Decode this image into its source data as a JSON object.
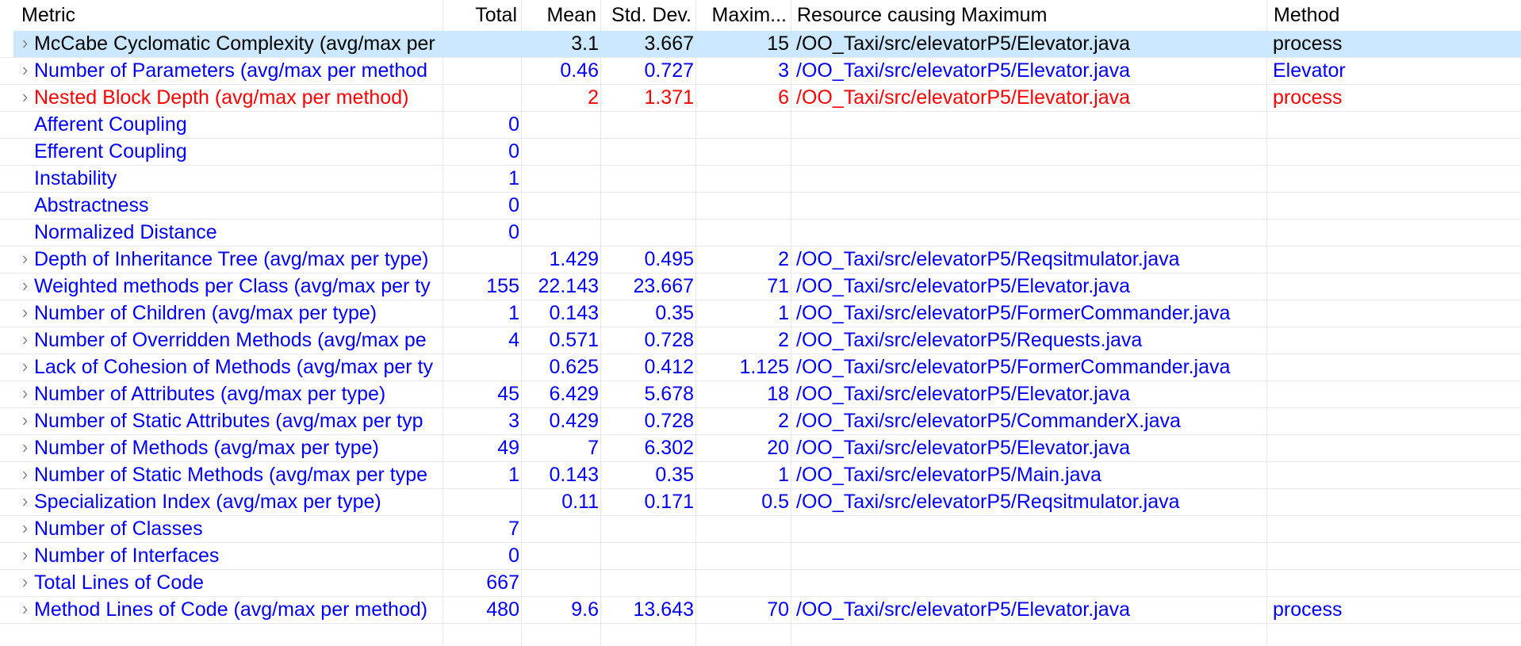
{
  "header": {
    "metric": "Metric",
    "total": "Total",
    "mean": "Mean",
    "std_dev": "Std. Dev.",
    "maximum": "Maxim...",
    "resource": "Resource causing Maximum",
    "method": "Method"
  },
  "colors": {
    "header_text": "#000000",
    "selected_background": "#cce8ff",
    "grid_line": "#e8e8e8",
    "expand_icon": "#808080"
  },
  "rows": [
    {
      "metric": "McCabe Cyclomatic Complexity (avg/max per",
      "mean": "3.1",
      "std_dev": "3.667",
      "maximum": "15",
      "resource": "/OO_Taxi/src/elevatorP5/Elevator.java",
      "method": "process",
      "color": "#000000",
      "selected": true,
      "expand_icon": "chevron-right-icon"
    },
    {
      "metric": "Number of Parameters (avg/max per method",
      "mean": "0.46",
      "std_dev": "0.727",
      "maximum": "3",
      "resource": "/OO_Taxi/src/elevatorP5/Elevator.java",
      "method": "Elevator",
      "color": "#0000ff",
      "expand_icon": "chevron-right-icon"
    },
    {
      "metric": "Nested Block Depth (avg/max per method)",
      "mean": "2",
      "std_dev": "1.371",
      "maximum": "6",
      "resource": "/OO_Taxi/src/elevatorP5/Elevator.java",
      "method": "process",
      "color": "#ff0000",
      "expand_icon": "chevron-right-icon"
    },
    {
      "metric": "Afferent Coupling",
      "total": "0",
      "color": "#0000ff"
    },
    {
      "metric": "Efferent Coupling",
      "total": "0",
      "color": "#0000ff"
    },
    {
      "metric": "Instability",
      "total": "1",
      "color": "#0000ff"
    },
    {
      "metric": "Abstractness",
      "total": "0",
      "color": "#0000ff"
    },
    {
      "metric": "Normalized Distance",
      "total": "0",
      "color": "#0000ff"
    },
    {
      "metric": "Depth of Inheritance Tree (avg/max per type)",
      "mean": "1.429",
      "std_dev": "0.495",
      "maximum": "2",
      "resource": "/OO_Taxi/src/elevatorP5/Reqsitmulator.java",
      "color": "#0000ff",
      "expand_icon": "chevron-right-icon"
    },
    {
      "metric": "Weighted methods per Class (avg/max per ty",
      "total": "155",
      "mean": "22.143",
      "std_dev": "23.667",
      "maximum": "71",
      "resource": "/OO_Taxi/src/elevatorP5/Elevator.java",
      "color": "#0000ff",
      "expand_icon": "chevron-right-icon"
    },
    {
      "metric": "Number of Children (avg/max per type)",
      "total": "1",
      "mean": "0.143",
      "std_dev": "0.35",
      "maximum": "1",
      "resource": "/OO_Taxi/src/elevatorP5/FormerCommander.java",
      "color": "#0000ff",
      "expand_icon": "chevron-right-icon"
    },
    {
      "metric": "Number of Overridden Methods (avg/max pe",
      "total": "4",
      "mean": "0.571",
      "std_dev": "0.728",
      "maximum": "2",
      "resource": "/OO_Taxi/src/elevatorP5/Requests.java",
      "color": "#0000ff",
      "expand_icon": "chevron-right-icon"
    },
    {
      "metric": "Lack of Cohesion of Methods (avg/max per ty",
      "mean": "0.625",
      "std_dev": "0.412",
      "maximum": "1.125",
      "resource": "/OO_Taxi/src/elevatorP5/FormerCommander.java",
      "color": "#0000ff",
      "expand_icon": "chevron-right-icon"
    },
    {
      "metric": "Number of Attributes (avg/max per type)",
      "total": "45",
      "mean": "6.429",
      "std_dev": "5.678",
      "maximum": "18",
      "resource": "/OO_Taxi/src/elevatorP5/Elevator.java",
      "color": "#0000ff",
      "expand_icon": "chevron-right-icon"
    },
    {
      "metric": "Number of Static Attributes (avg/max per typ",
      "total": "3",
      "mean": "0.429",
      "std_dev": "0.728",
      "maximum": "2",
      "resource": "/OO_Taxi/src/elevatorP5/CommanderX.java",
      "color": "#0000ff",
      "expand_icon": "chevron-right-icon"
    },
    {
      "metric": "Number of Methods (avg/max per type)",
      "total": "49",
      "mean": "7",
      "std_dev": "6.302",
      "maximum": "20",
      "resource": "/OO_Taxi/src/elevatorP5/Elevator.java",
      "color": "#0000ff",
      "expand_icon": "chevron-right-icon"
    },
    {
      "metric": "Number of Static Methods (avg/max per type",
      "total": "1",
      "mean": "0.143",
      "std_dev": "0.35",
      "maximum": "1",
      "resource": "/OO_Taxi/src/elevatorP5/Main.java",
      "color": "#0000ff",
      "expand_icon": "chevron-right-icon"
    },
    {
      "metric": "Specialization Index (avg/max per type)",
      "mean": "0.11",
      "std_dev": "0.171",
      "maximum": "0.5",
      "resource": "/OO_Taxi/src/elevatorP5/Reqsitmulator.java",
      "color": "#0000ff",
      "expand_icon": "chevron-right-icon"
    },
    {
      "metric": "Number of Classes",
      "total": "7",
      "color": "#0000ff",
      "expand_icon": "chevron-right-icon"
    },
    {
      "metric": "Number of Interfaces",
      "total": "0",
      "color": "#0000ff",
      "expand_icon": "chevron-right-icon"
    },
    {
      "metric": "Total Lines of Code",
      "total": "667",
      "color": "#0000ff",
      "expand_icon": "chevron-right-icon"
    },
    {
      "metric": "Method Lines of Code (avg/max per method)",
      "total": "480",
      "mean": "9.6",
      "std_dev": "13.643",
      "maximum": "70",
      "resource": "/OO_Taxi/src/elevatorP5/Elevator.java",
      "method": "process",
      "color": "#0000ff",
      "expand_icon": "chevron-right-icon"
    }
  ]
}
